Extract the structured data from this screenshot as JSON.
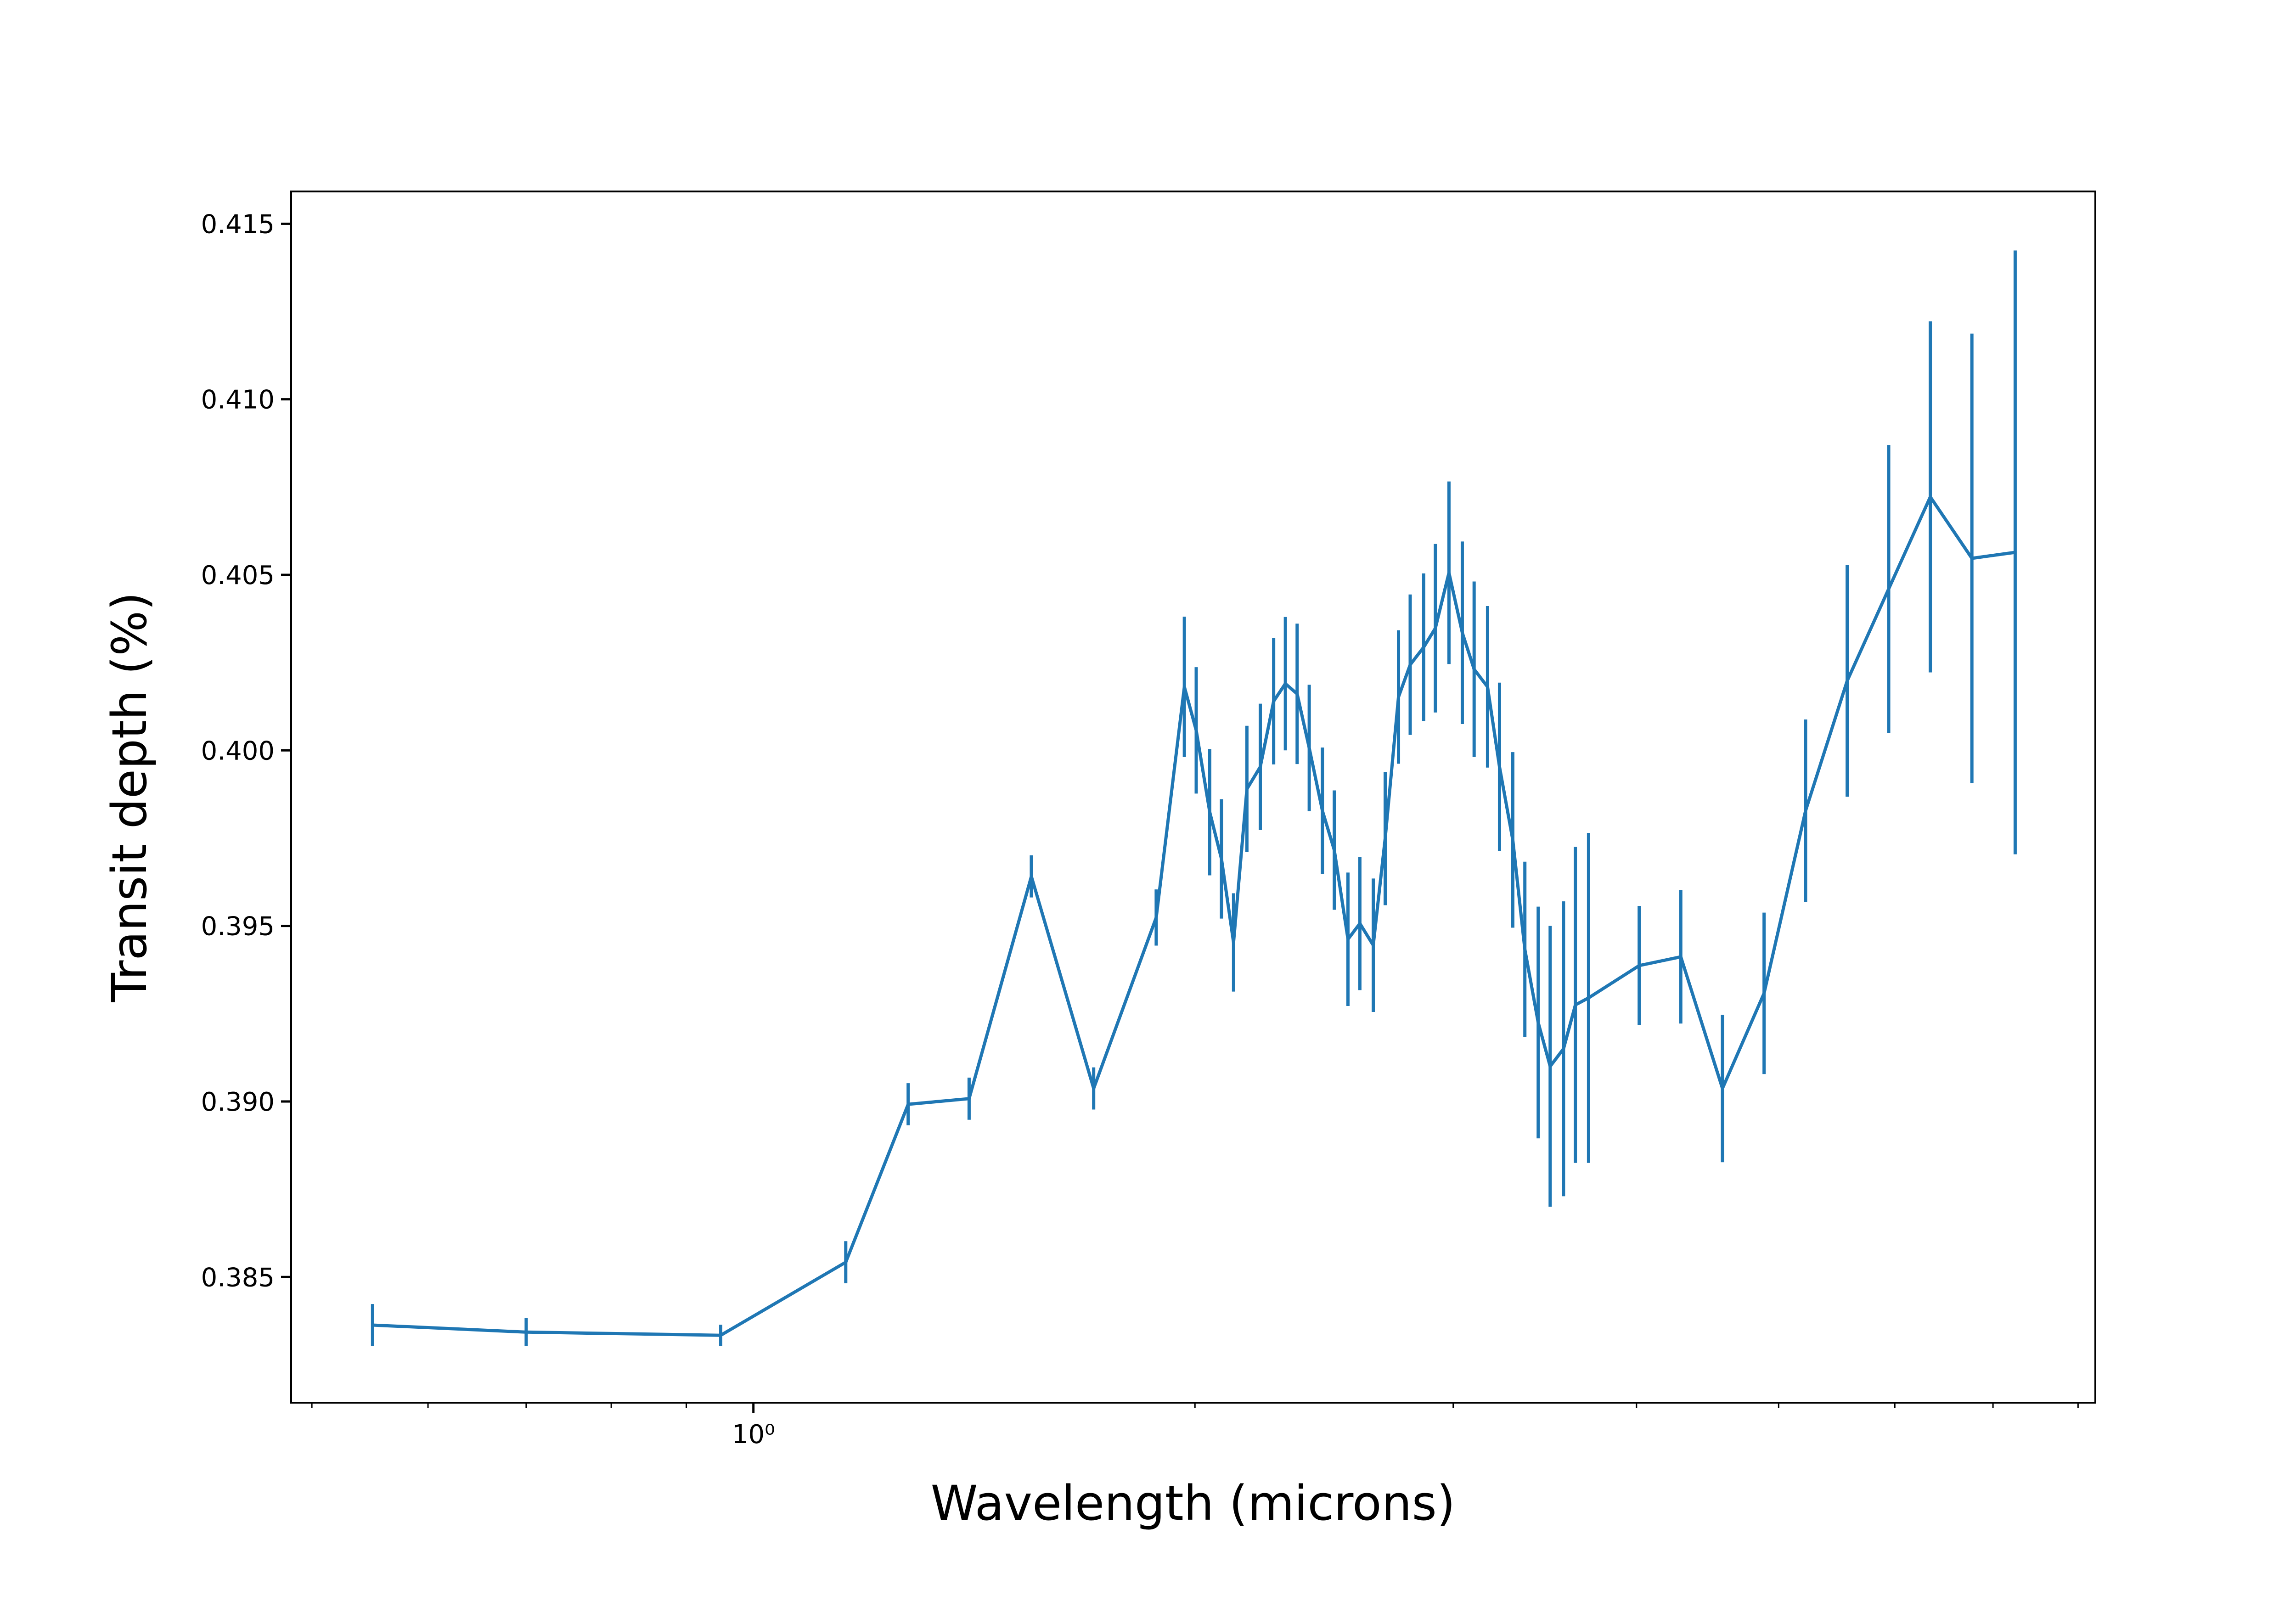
{
  "chart_data": {
    "type": "line",
    "xlabel": "Wavelength (microns)",
    "ylabel": "Transit depth (%)",
    "color": "#1f77b4",
    "xscale": "log",
    "x": [
      0.55,
      0.7,
      0.95,
      1.156,
      1.275,
      1.403,
      1.547,
      1.706,
      1.882,
      1.967,
      2.004,
      2.047,
      2.085,
      2.125,
      2.17,
      2.216,
      2.263,
      2.305,
      2.348,
      2.393,
      2.443,
      2.489,
      2.543,
      2.591,
      2.646,
      2.696,
      2.753,
      2.804,
      2.864,
      2.917,
      2.98,
      3.043,
      3.1,
      3.166,
      3.226,
      3.294,
      3.357,
      3.428,
      3.493,
      3.567,
      3.634,
      3.71,
      4.017,
      4.288,
      4.578,
      4.887,
      5.216,
      5.568,
      5.943,
      6.344,
      6.772,
      7.248
    ],
    "values": [
      0.38363,
      0.38343,
      0.38334,
      0.38542,
      0.38992,
      0.39008,
      0.39641,
      0.39037,
      0.39524,
      0.40181,
      0.40057,
      0.39824,
      0.39691,
      0.39453,
      0.3989,
      0.39953,
      0.4014,
      0.4019,
      0.40161,
      0.40007,
      0.39828,
      0.39716,
      0.39462,
      0.39507,
      0.39445,
      0.39749,
      0.40152,
      0.40244,
      0.40294,
      0.40348,
      0.40506,
      0.40335,
      0.40231,
      0.40181,
      0.39953,
      0.39745,
      0.39433,
      0.39225,
      0.391,
      0.3915,
      0.39275,
      0.39295,
      0.39387,
      0.39412,
      0.39037,
      0.39308,
      0.39828,
      0.40198,
      0.4046,
      0.40722,
      0.40547,
      0.40564
    ],
    "errors": [
      0.0006,
      0.0004,
      0.0003,
      0.0006,
      0.0006,
      0.0006,
      0.0006,
      0.0006,
      0.0008,
      0.002,
      0.0018,
      0.0018,
      0.0017,
      0.0014,
      0.0018,
      0.0018,
      0.0018,
      0.0019,
      0.002,
      0.0018,
      0.0018,
      0.0017,
      0.0019,
      0.0019,
      0.0019,
      0.0019,
      0.0019,
      0.002,
      0.0021,
      0.0024,
      0.0026,
      0.0026,
      0.0025,
      0.0023,
      0.0024,
      0.0025,
      0.0025,
      0.0033,
      0.004,
      0.0042,
      0.0045,
      0.0047,
      0.0017,
      0.0019,
      0.0021,
      0.0023,
      0.0026,
      0.0033,
      0.0041,
      0.005,
      0.0064,
      0.0086
    ],
    "xlim": [
      0.484,
      8.22
    ],
    "xticks": [
      {
        "value": 1,
        "label": "10⁰"
      }
    ],
    "xminorticks": [
      0.5,
      0.6,
      0.7,
      0.8,
      0.9,
      2,
      3,
      4,
      5,
      6,
      7,
      8
    ],
    "ylim": [
      0.38142,
      0.41592
    ],
    "yticks": [
      0.385,
      {
        "value": 0.39,
        "label": "0.390"
      },
      0.395,
      {
        "value": 0.4,
        "label": "0.400"
      },
      0.405,
      {
        "value": 0.41,
        "label": "0.410"
      },
      0.415
    ]
  }
}
